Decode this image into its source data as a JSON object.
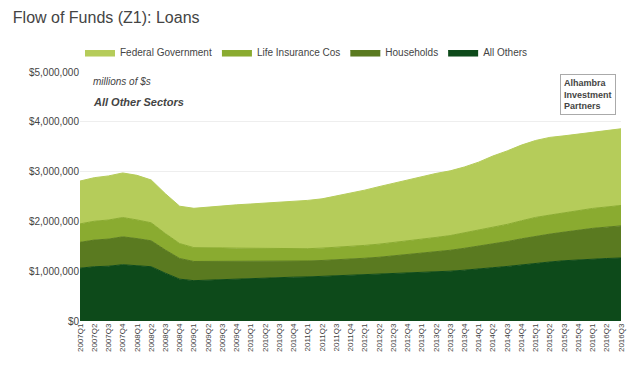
{
  "chart_data": {
    "type": "area",
    "stacked": true,
    "title": "Flow of Funds (Z1): Loans",
    "subtitle": "millions of $s",
    "annotations": [
      "All Other Sectors",
      "Alhambra",
      "Investment",
      "Partners"
    ],
    "categories": [
      "2007Q1",
      "2007Q2",
      "2007Q3",
      "2007Q4",
      "2008Q1",
      "2008Q2",
      "2008Q3",
      "2008Q4",
      "2009Q1",
      "2009Q2",
      "2009Q3",
      "2009Q4",
      "2010Q1",
      "2010Q2",
      "2010Q3",
      "2010Q4",
      "2011Q1",
      "2011Q2",
      "2011Q3",
      "2011Q4",
      "2012Q1",
      "2012Q2",
      "2012Q3",
      "2012Q4",
      "2013Q1",
      "2013Q2",
      "2013Q3",
      "2013Q4",
      "2014Q1",
      "2014Q2",
      "2014Q3",
      "2014Q4",
      "2015Q1",
      "2015Q2",
      "2015Q3",
      "2015Q4",
      "2016Q1",
      "2016Q2",
      "2016Q3"
    ],
    "series": [
      {
        "name": "All Others",
        "color": "#0d4a1a",
        "values": [
          1060000,
          1090000,
          1100000,
          1130000,
          1110000,
          1090000,
          960000,
          840000,
          810000,
          820000,
          840000,
          850000,
          860000,
          870000,
          875000,
          880000,
          885000,
          895000,
          905000,
          915000,
          925000,
          935000,
          945000,
          960000,
          970000,
          985000,
          1000000,
          1020000,
          1040000,
          1070000,
          1095000,
          1130000,
          1160000,
          1185000,
          1210000,
          1230000,
          1245000,
          1255000,
          1265000
        ]
      },
      {
        "name": "Households",
        "color": "#5a7a20",
        "values": [
          520000,
          535000,
          545000,
          560000,
          545000,
          520000,
          465000,
          415000,
          385000,
          375000,
          365000,
          355000,
          345000,
          335000,
          330000,
          325000,
          320000,
          320000,
          322000,
          325000,
          335000,
          345000,
          360000,
          375000,
          390000,
          405000,
          420000,
          440000,
          460000,
          480000,
          500000,
          520000,
          545000,
          560000,
          575000,
          595000,
          615000,
          630000,
          645000
        ]
      },
      {
        "name": "Life Insurance Cos",
        "color": "#8aab30",
        "values": [
          370000,
          378000,
          383000,
          388000,
          375000,
          362000,
          330000,
          300000,
          278000,
          268000,
          262000,
          258000,
          255000,
          252000,
          250000,
          248000,
          247000,
          248000,
          250000,
          252000,
          258000,
          263000,
          268000,
          275000,
          282000,
          288000,
          295000,
          308000,
          320000,
          333000,
          345000,
          362000,
          375000,
          382000,
          388000,
          395000,
          400000,
          405000,
          410000
        ]
      },
      {
        "name": "Federal Government",
        "color": "#b5cc5a",
        "values": [
          860000,
          875000,
          885000,
          895000,
          895000,
          860000,
          800000,
          750000,
          790000,
          825000,
          855000,
          870000,
          890000,
          910000,
          930000,
          950000,
          970000,
          990000,
          1030000,
          1070000,
          1110000,
          1155000,
          1190000,
          1230000,
          1260000,
          1285000,
          1300000,
          1325000,
          1370000,
          1430000,
          1475000,
          1520000,
          1545000,
          1560000,
          1545000,
          1530000,
          1525000,
          1535000,
          1540000
        ]
      }
    ],
    "ylim": [
      0,
      5000000
    ],
    "yticks": [
      {
        "value": 0,
        "label": "$0"
      },
      {
        "value": 1000000,
        "label": "$1,000,000"
      },
      {
        "value": 2000000,
        "label": "$2,000,000"
      },
      {
        "value": 3000000,
        "label": "$3,000,000"
      },
      {
        "value": 4000000,
        "label": "$4,000,000"
      },
      {
        "value": 5000000,
        "label": "$5,000,000"
      }
    ],
    "grid": true,
    "legend": "top"
  }
}
